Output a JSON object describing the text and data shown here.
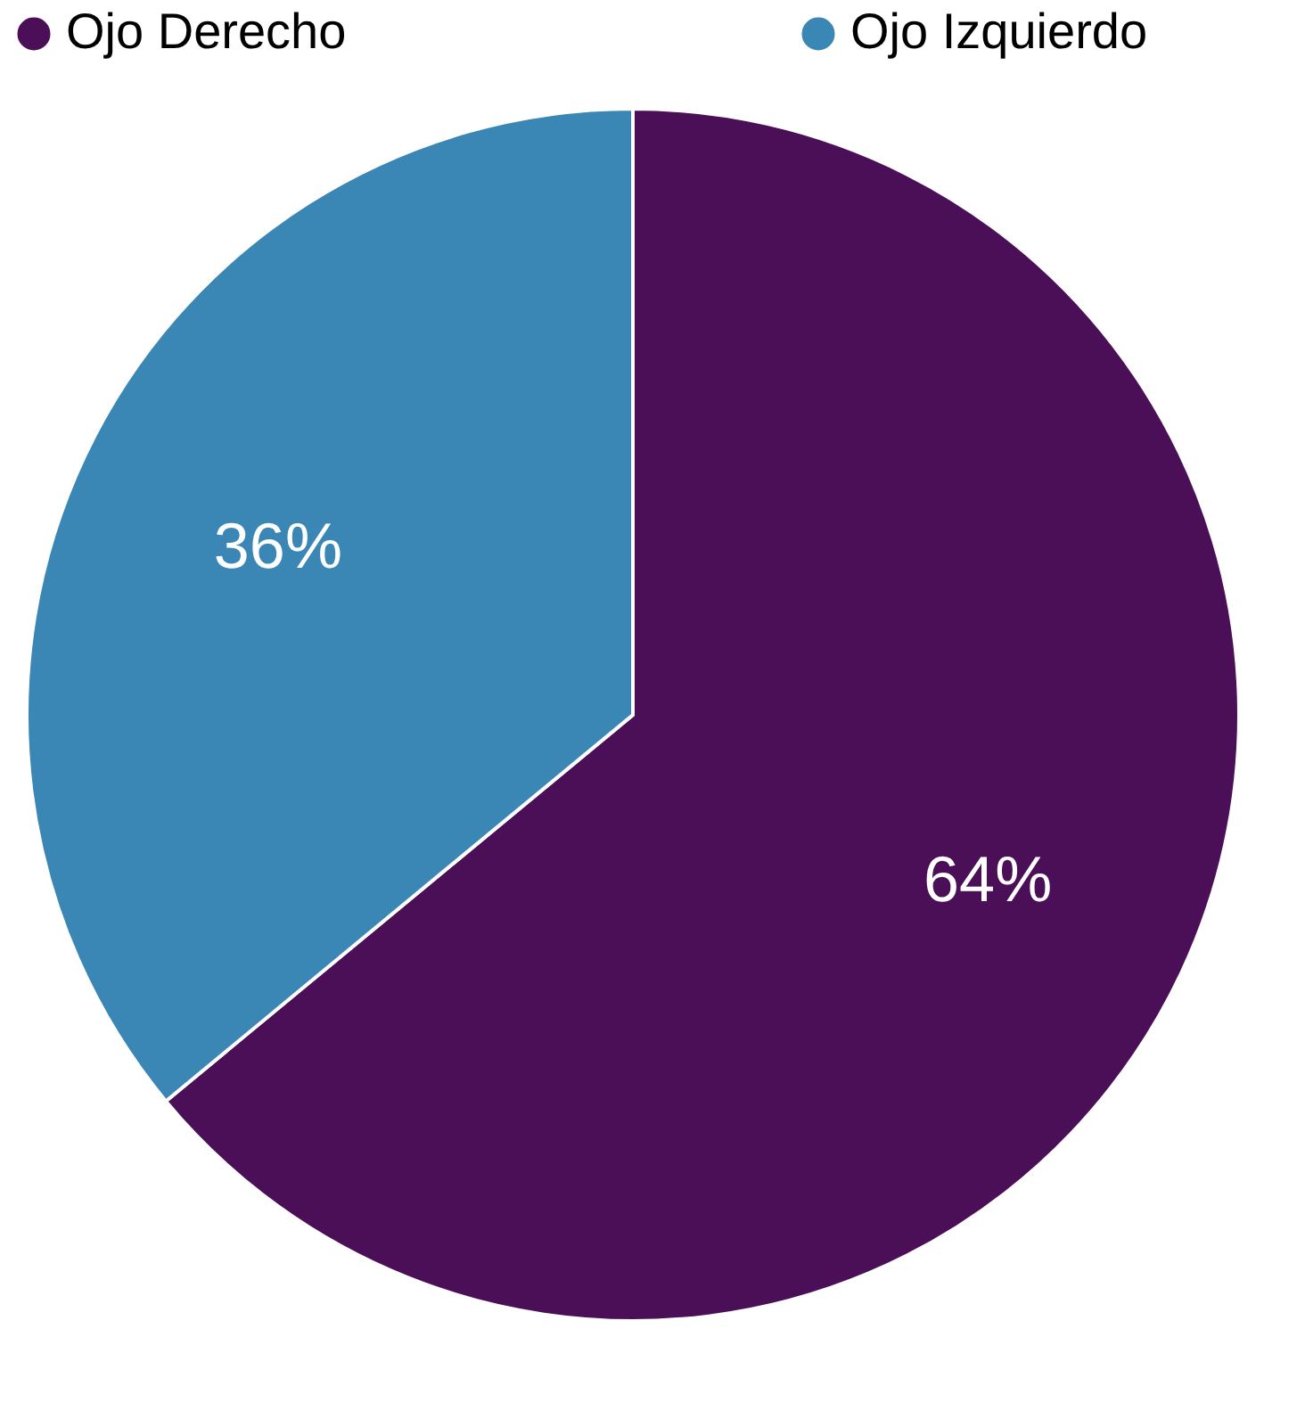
{
  "chart_data": {
    "type": "pie",
    "categories": [
      "Ojo Derecho",
      "Ojo Izquierdo"
    ],
    "values": [
      64,
      36
    ],
    "colors": [
      "#4a0f57",
      "#3a86b5"
    ],
    "value_labels": [
      "64%",
      "36%"
    ],
    "legend": "top"
  }
}
